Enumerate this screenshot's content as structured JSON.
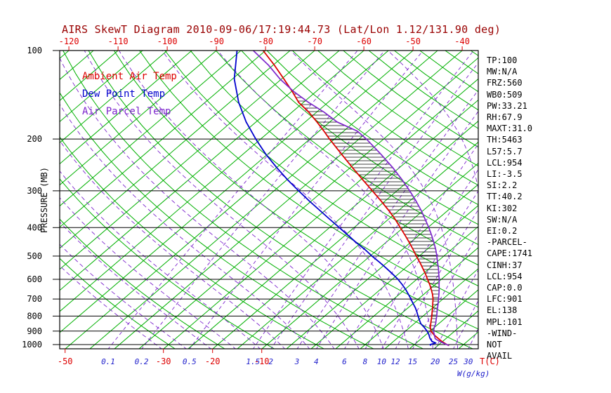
{
  "chart_data": {
    "type": "line",
    "title": "AIRS SkewT Diagram 2010-09-06/17:19:44.73 (Lat/Lon 1.12/131.90 deg)",
    "x_axis": {
      "label": "T(C)",
      "top_ticks_c": [
        -120,
        -110,
        -100,
        -90,
        -80,
        -70,
        -60,
        -50,
        -40
      ],
      "bottom_ticks_c": [
        -50,
        -30,
        -20,
        -10
      ]
    },
    "y_axis": {
      "label": "PRESSURE (MB)",
      "scale": "log",
      "ticks_mb": [
        100,
        200,
        300,
        400,
        500,
        600,
        700,
        800,
        900,
        1000
      ],
      "range_mb": [
        100,
        1035
      ]
    },
    "mixing_ratio_axis": {
      "label": "W(g/kg)",
      "ticks_g_kg": [
        0.1,
        0.2,
        0.5,
        1.5,
        2,
        3,
        4,
        6,
        8,
        10,
        12,
        15,
        20,
        25,
        30
      ]
    },
    "background": {
      "isotherm_step_c": 5,
      "isotherm_range_c": [
        -160,
        45
      ],
      "dry_adiabat_theta_range_c": [
        -30,
        200,
        10
      ],
      "moist_adiabat_start_range_c": [
        -30,
        40,
        5
      ]
    },
    "series": [
      {
        "name": "Ambient Air Temp",
        "color": "#dd0000",
        "style": "solid",
        "points_p_t": [
          [
            1008,
            27.3
          ],
          [
            1000,
            26.6
          ],
          [
            975,
            24.8
          ],
          [
            950,
            23.2
          ],
          [
            925,
            21.6
          ],
          [
            900,
            20.2
          ],
          [
            875,
            19.2
          ],
          [
            850,
            18.4
          ],
          [
            825,
            17.6
          ],
          [
            800,
            16.8
          ],
          [
            775,
            15.9
          ],
          [
            750,
            15.0
          ],
          [
            725,
            14.0
          ],
          [
            700,
            13.0
          ],
          [
            675,
            11.8
          ],
          [
            650,
            10.4
          ],
          [
            625,
            8.9
          ],
          [
            600,
            7.2
          ],
          [
            575,
            5.5
          ],
          [
            550,
            3.6
          ],
          [
            525,
            1.6
          ],
          [
            500,
            -0.6
          ],
          [
            475,
            -2.8
          ],
          [
            450,
            -5.2
          ],
          [
            425,
            -7.8
          ],
          [
            400,
            -10.6
          ],
          [
            375,
            -13.6
          ],
          [
            350,
            -17.0
          ],
          [
            325,
            -20.8
          ],
          [
            300,
            -25.0
          ],
          [
            275,
            -29.6
          ],
          [
            250,
            -34.6
          ],
          [
            225,
            -40.0
          ],
          [
            200,
            -46.0
          ],
          [
            188,
            -49.0
          ],
          [
            175,
            -52.6
          ],
          [
            162,
            -56.6
          ],
          [
            150,
            -61.0
          ],
          [
            138,
            -64.8
          ],
          [
            125,
            -69.5
          ],
          [
            112,
            -74.8
          ],
          [
            100,
            -80.5
          ]
        ]
      },
      {
        "name": "Dew Point Temp",
        "color": "#0000cd",
        "style": "solid",
        "points_p_t": [
          [
            1008,
            23.6
          ],
          [
            1000,
            23.2
          ],
          [
            988,
            24.0
          ],
          [
            975,
            22.8
          ],
          [
            950,
            21.6
          ],
          [
            925,
            20.6
          ],
          [
            900,
            19.4
          ],
          [
            875,
            18.0
          ],
          [
            850,
            16.4
          ],
          [
            825,
            15.2
          ],
          [
            800,
            14.0
          ],
          [
            775,
            12.8
          ],
          [
            750,
            11.5
          ],
          [
            725,
            10.0
          ],
          [
            700,
            8.5
          ],
          [
            675,
            6.9
          ],
          [
            650,
            5.2
          ],
          [
            625,
            3.3
          ],
          [
            600,
            1.2
          ],
          [
            575,
            -1.2
          ],
          [
            550,
            -3.8
          ],
          [
            525,
            -6.6
          ],
          [
            500,
            -9.6
          ],
          [
            475,
            -12.6
          ],
          [
            450,
            -16.0
          ],
          [
            425,
            -19.4
          ],
          [
            400,
            -23.0
          ],
          [
            375,
            -26.9
          ],
          [
            350,
            -31.0
          ],
          [
            325,
            -35.4
          ],
          [
            300,
            -40.0
          ],
          [
            275,
            -44.9
          ],
          [
            250,
            -50.0
          ],
          [
            225,
            -55.4
          ],
          [
            200,
            -61.0
          ],
          [
            175,
            -67.0
          ],
          [
            150,
            -73.2
          ],
          [
            125,
            -79.6
          ],
          [
            100,
            -85.8
          ]
        ]
      },
      {
        "name": "Air Parcel Temp",
        "color": "#7d26cd",
        "style": "solid",
        "points_p_t": [
          [
            1008,
            27.3
          ],
          [
            1000,
            26.6
          ],
          [
            988,
            25.5
          ],
          [
            975,
            24.4
          ],
          [
            960,
            23.2
          ],
          [
            954,
            22.8
          ],
          [
            925,
            21.7
          ],
          [
            900,
            20.7
          ],
          [
            875,
            20.0
          ],
          [
            850,
            19.4
          ],
          [
            825,
            18.6
          ],
          [
            800,
            17.8
          ],
          [
            775,
            16.9
          ],
          [
            750,
            16.0
          ],
          [
            725,
            15.1
          ],
          [
            700,
            14.1
          ],
          [
            675,
            13.1
          ],
          [
            650,
            12.0
          ],
          [
            625,
            10.8
          ],
          [
            600,
            9.6
          ],
          [
            575,
            8.2
          ],
          [
            550,
            6.8
          ],
          [
            525,
            5.2
          ],
          [
            500,
            3.6
          ],
          [
            475,
            1.8
          ],
          [
            450,
            -0.2
          ],
          [
            425,
            -2.4
          ],
          [
            400,
            -4.8
          ],
          [
            375,
            -7.5
          ],
          [
            350,
            -10.4
          ],
          [
            325,
            -13.7
          ],
          [
            300,
            -17.4
          ],
          [
            275,
            -21.6
          ],
          [
            250,
            -26.4
          ],
          [
            225,
            -32.0
          ],
          [
            200,
            -38.5
          ],
          [
            188,
            -42.2
          ],
          [
            175,
            -48.5
          ],
          [
            162,
            -53.5
          ],
          [
            150,
            -59.0
          ],
          [
            138,
            -64.5
          ],
          [
            125,
            -70.3
          ],
          [
            112,
            -76.0
          ],
          [
            100,
            -82.5
          ]
        ]
      }
    ],
    "hatch": {
      "between_series": [
        0,
        2
      ],
      "pressure_range_mb": [
        905,
        140
      ]
    }
  },
  "legend": {
    "items": [
      {
        "label": "Ambient Air Temp",
        "color": "#dd0000"
      },
      {
        "label": "Dew Point Temp",
        "color": "#0000cd"
      },
      {
        "label": "Air Parcel Temp",
        "color": "#7d26cd"
      }
    ]
  },
  "stats": {
    "lines": [
      "TP:100",
      "MW:N/A",
      "FRZ:560",
      "WB0:509",
      "PW:33.21",
      "RH:67.9",
      "MAXT:31.0",
      "TH:5463",
      "L57:5.7",
      "LCL:954",
      "LI:-3.5",
      "SI:2.2",
      "TT:40.2",
      "KI:302",
      "SW:N/A",
      "EI:0.2",
      "-PARCEL-",
      "CAPE:1741",
      "CINH:37",
      "LCL:954",
      "CAP:0.0",
      "LFC:901",
      "EL:138",
      "MPL:101",
      "-WIND-",
      "NOT",
      "AVAIL"
    ]
  },
  "colors": {
    "title": "#990000",
    "isolines_green": "#00b000",
    "moist_purple": "#7d26cd",
    "axis_black": "#000000",
    "temp_red": "#dd0000",
    "mixing_blue": "#2222cc"
  }
}
